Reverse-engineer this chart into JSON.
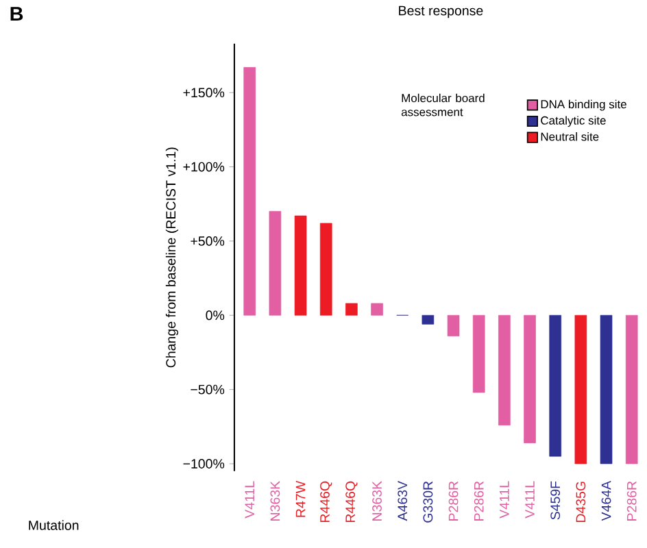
{
  "chart_data": {
    "type": "bar",
    "title": "Best response",
    "ylabel": "Change from baseline (RECIST v1.1)",
    "legend_title": "Molecular board assessment",
    "legend": "top right",
    "annotations": [
      "B",
      "Mutation"
    ],
    "categories": [
      "V411L",
      "N363K",
      "R47W",
      "R446Q",
      "R446Q",
      "N363K",
      "A463V",
      "G330R",
      "P286R",
      "P286R",
      "V411L",
      "V411L",
      "S459F",
      "D435G",
      "V464A",
      "P286R"
    ],
    "series": [
      {
        "name": "DNA binding site",
        "color": "#e35fa3",
        "values": [
          167,
          70,
          null,
          null,
          null,
          8,
          null,
          null,
          -14,
          -52,
          -74,
          -86,
          null,
          null,
          null,
          -100
        ]
      },
      {
        "name": "Catalytic site",
        "color": "#2e3192",
        "values": [
          null,
          null,
          null,
          null,
          null,
          null,
          0,
          -6,
          null,
          null,
          null,
          null,
          -95,
          null,
          -100,
          null
        ]
      },
      {
        "name": "Neutral site",
        "color": "#ed1c24",
        "values": [
          null,
          null,
          67,
          62,
          8,
          null,
          null,
          null,
          null,
          null,
          null,
          null,
          null,
          -100,
          null,
          null
        ]
      }
    ],
    "ylim": [
      -105,
      183
    ],
    "yticks": [
      {
        "value": -100,
        "label": "−100%"
      },
      {
        "value": -50,
        "label": "−50%"
      },
      {
        "value": 0,
        "label": "0%"
      },
      {
        "value": 50,
        "label": "+50%"
      },
      {
        "value": 100,
        "label": "+100%"
      },
      {
        "value": 150,
        "label": "+150%"
      }
    ]
  }
}
